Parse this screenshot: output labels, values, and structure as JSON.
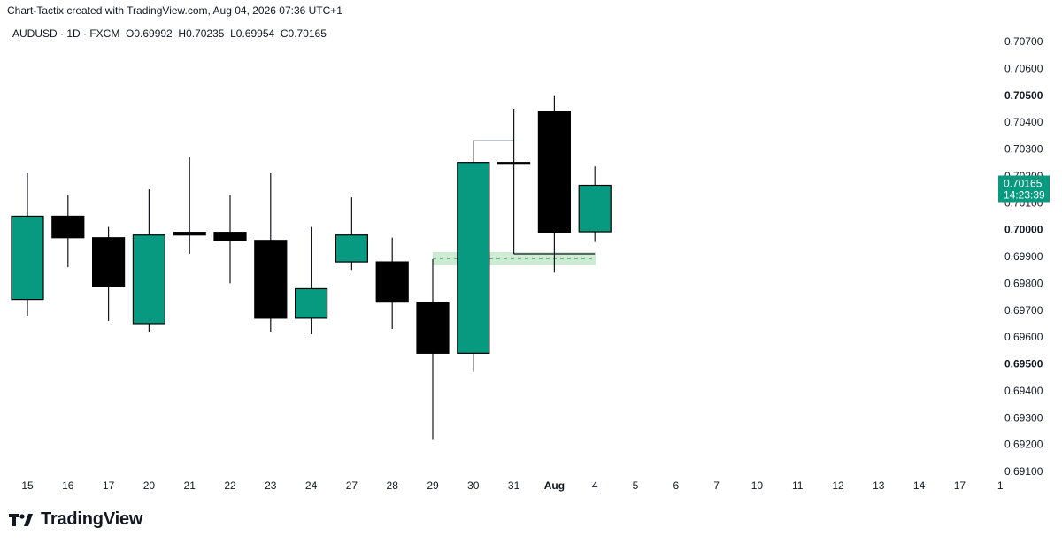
{
  "header": {
    "caption": "Chart-Tactix created with TradingView.com, Aug 04, 2026 07:36 UTC+1",
    "symbol": "AUDUSD · 1D · FXCM",
    "open": "O0.69992",
    "high": "H0.70235",
    "low": "L0.69954",
    "close": "C0.70165"
  },
  "current_price": {
    "price": "0.70165",
    "countdown": "14:23:39",
    "color": "#089981"
  },
  "brand": {
    "name": "TradingView"
  },
  "colors": {
    "up": "#089981",
    "down": "#000000",
    "wick": "#131722",
    "zone": "#cdebd3",
    "zone_dash": "#53b987"
  },
  "chart_data": {
    "type": "candlestick",
    "symbol": "AUDUSD",
    "timeframe": "1D",
    "ylim": [
      0.691,
      0.7075
    ],
    "y_ticks": [
      "0.70700",
      "0.70600",
      "0.70500",
      "0.70400",
      "0.70300",
      "0.70200",
      "0.70100",
      "0.70000",
      "0.69900",
      "0.69800",
      "0.69700",
      "0.69600",
      "0.69500",
      "0.69400",
      "0.69300",
      "0.69200",
      "0.69100"
    ],
    "y_ticks_bold": [
      "0.70500",
      "0.70000",
      "0.69500"
    ],
    "x_ticks": [
      "15",
      "16",
      "17",
      "20",
      "21",
      "22",
      "23",
      "24",
      "27",
      "28",
      "29",
      "30",
      "31",
      "Aug",
      "4",
      "5",
      "6",
      "7",
      "10",
      "11",
      "12",
      "13",
      "14",
      "17",
      "1"
    ],
    "x_ticks_bold": [
      "Aug"
    ],
    "candles": [
      {
        "date": "15",
        "open": 0.6974,
        "high": 0.7021,
        "low": 0.6968,
        "close": 0.7005
      },
      {
        "date": "16",
        "open": 0.7005,
        "high": 0.7013,
        "low": 0.6986,
        "close": 0.6997
      },
      {
        "date": "17",
        "open": 0.6997,
        "high": 0.7001,
        "low": 0.6966,
        "close": 0.6979
      },
      {
        "date": "20",
        "open": 0.6965,
        "high": 0.7015,
        "low": 0.6962,
        "close": 0.6998
      },
      {
        "date": "21",
        "open": 0.6999,
        "high": 0.7027,
        "low": 0.6991,
        "close": 0.6998
      },
      {
        "date": "22",
        "open": 0.6999,
        "high": 0.7013,
        "low": 0.698,
        "close": 0.6996
      },
      {
        "date": "23",
        "open": 0.6996,
        "high": 0.7021,
        "low": 0.6962,
        "close": 0.6967
      },
      {
        "date": "24",
        "open": 0.6967,
        "high": 0.7001,
        "low": 0.6961,
        "close": 0.6978
      },
      {
        "date": "27",
        "open": 0.6988,
        "high": 0.7012,
        "low": 0.6985,
        "close": 0.6998
      },
      {
        "date": "28",
        "open": 0.6988,
        "high": 0.6997,
        "low": 0.6963,
        "close": 0.6973
      },
      {
        "date": "29",
        "open": 0.6973,
        "high": 0.6989,
        "low": 0.6922,
        "close": 0.6954
      },
      {
        "date": "30",
        "open": 0.6954,
        "high": 0.7033,
        "low": 0.6947,
        "close": 0.7025
      },
      {
        "date": "31",
        "open": 0.7025,
        "high": 0.7045,
        "low": 0.6991,
        "close": 0.7025
      },
      {
        "date": "Aug",
        "open": 0.7044,
        "high": 0.705,
        "low": 0.6984,
        "close": 0.6999
      },
      {
        "date": "4",
        "open": 0.69992,
        "high": 0.70235,
        "low": 0.69954,
        "close": 0.70165
      }
    ],
    "annotations": {
      "level_lines": [
        {
          "from": "30",
          "to": "31",
          "price": 0.7033
        },
        {
          "from": "31",
          "to": "4",
          "price": 0.6991
        }
      ],
      "zone": {
        "from": "29",
        "to": "4",
        "top": 0.6991,
        "bottom": 0.6988
      }
    }
  }
}
